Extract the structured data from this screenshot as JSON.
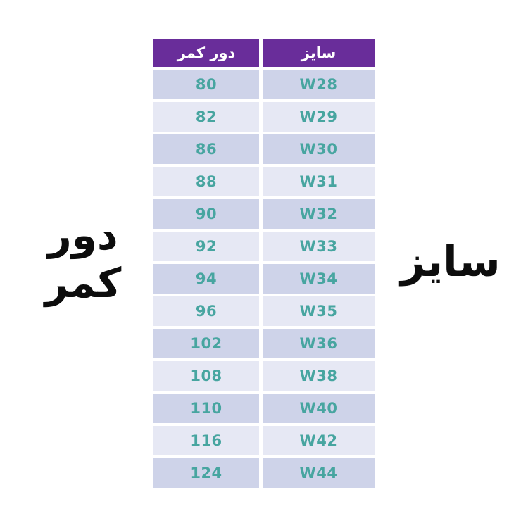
{
  "page": {
    "background": "#ffffff"
  },
  "colors": {
    "header_bg": "#692d9a",
    "header_text": "#ffffff",
    "row_odd_bg": "#ced3e9",
    "row_even_bg": "#e6e8f4",
    "value_text": "#47a5a0",
    "side_label_text": "#0d0d0d"
  },
  "side_labels": {
    "left_line1": "دور",
    "left_line2": "کمر",
    "right": "سایز"
  },
  "table": {
    "headers": {
      "waist": "دور کمر",
      "size": "سایز"
    },
    "rows": [
      {
        "waist": "80",
        "size": "W28"
      },
      {
        "waist": "82",
        "size": "W29"
      },
      {
        "waist": "86",
        "size": "W30"
      },
      {
        "waist": "88",
        "size": "W31"
      },
      {
        "waist": "90",
        "size": "W32"
      },
      {
        "waist": "92",
        "size": "W33"
      },
      {
        "waist": "94",
        "size": "W34"
      },
      {
        "waist": "96",
        "size": "W35"
      },
      {
        "waist": "102",
        "size": "W36"
      },
      {
        "waist": "108",
        "size": "W38"
      },
      {
        "waist": "110",
        "size": "W40"
      },
      {
        "waist": "116",
        "size": "W42"
      },
      {
        "waist": "124",
        "size": "W44"
      }
    ]
  },
  "chart_data": {
    "type": "table",
    "title": "",
    "columns": [
      "دور کمر",
      "سایز"
    ],
    "rows": [
      [
        "80",
        "W28"
      ],
      [
        "82",
        "W29"
      ],
      [
        "86",
        "W30"
      ],
      [
        "88",
        "W31"
      ],
      [
        "90",
        "W32"
      ],
      [
        "92",
        "W33"
      ],
      [
        "94",
        "W34"
      ],
      [
        "96",
        "W35"
      ],
      [
        "102",
        "W36"
      ],
      [
        "108",
        "W38"
      ],
      [
        "110",
        "W40"
      ],
      [
        "116",
        "W42"
      ],
      [
        "124",
        "W44"
      ]
    ]
  }
}
